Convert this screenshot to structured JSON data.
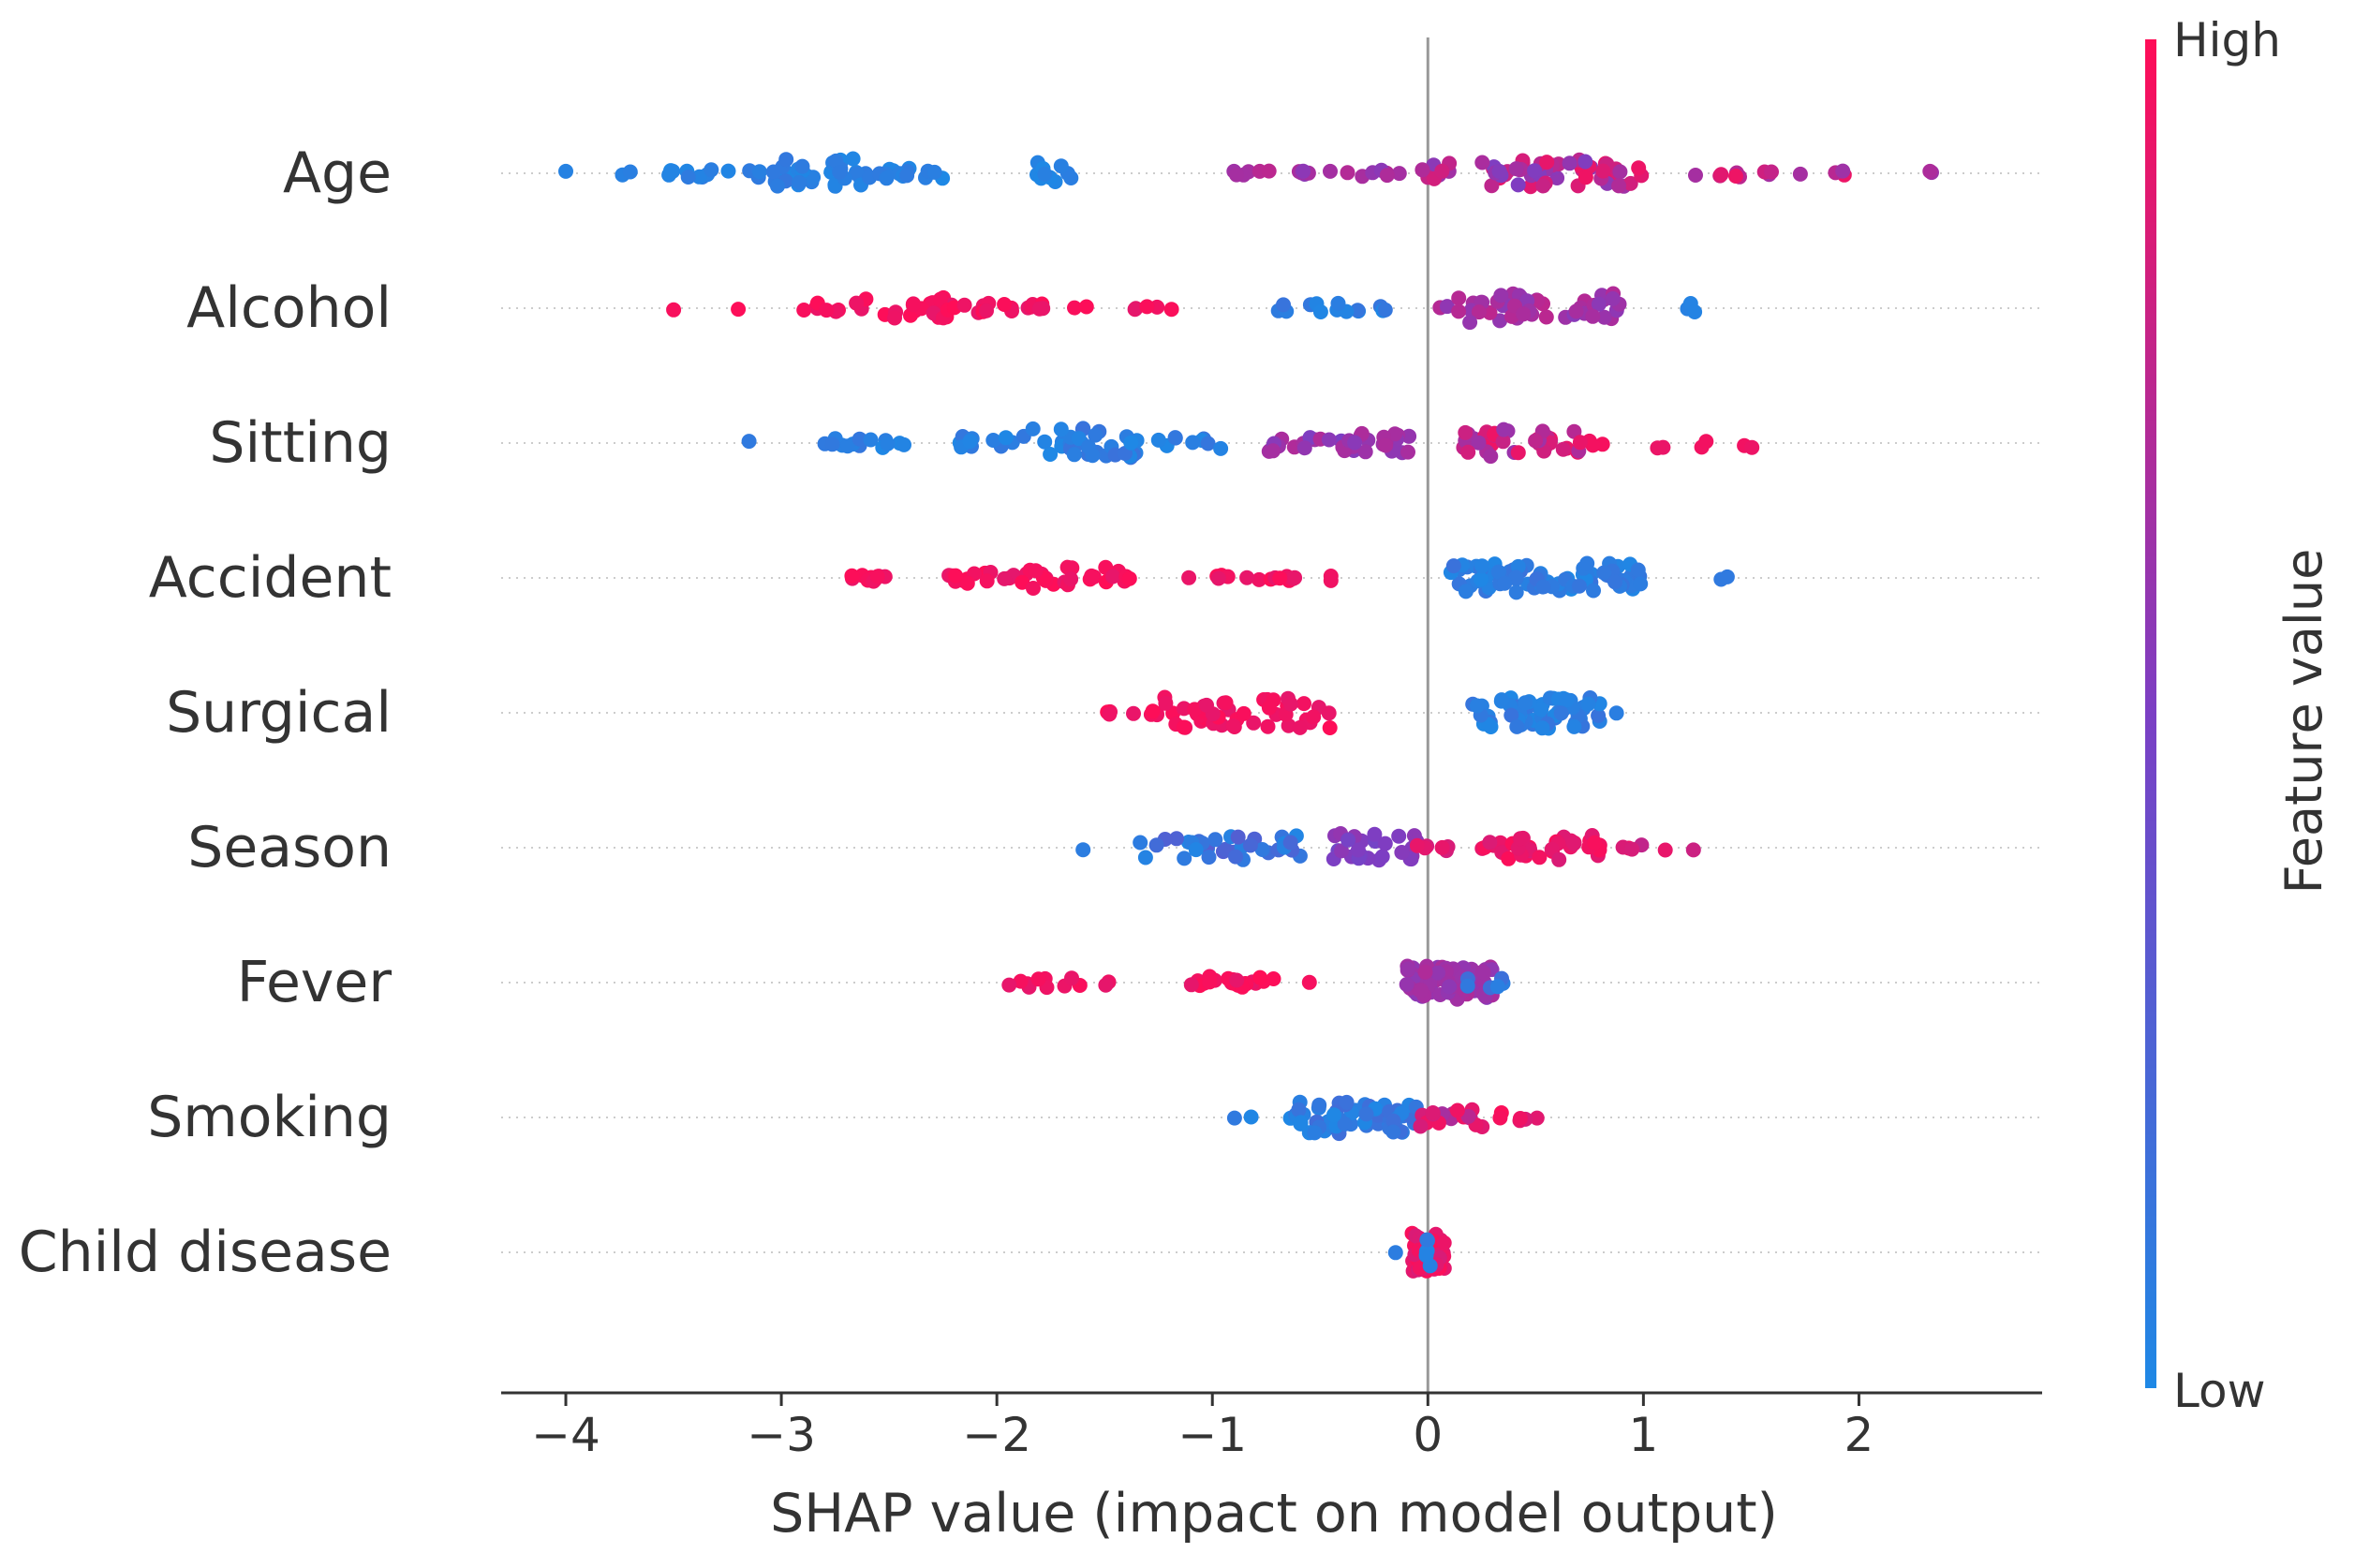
{
  "chart_data": {
    "type": "scatter",
    "subtype": "shap-beeswarm",
    "title": "",
    "xlabel": "SHAP value (impact on model output)",
    "ylabel": "",
    "xlim": [
      -4.3,
      2.85
    ],
    "x_ticks": [
      {
        "value": -4,
        "label": "−4"
      },
      {
        "value": -3,
        "label": "−3"
      },
      {
        "value": -2,
        "label": "−2"
      },
      {
        "value": -1,
        "label": "−1"
      },
      {
        "value": 0,
        "label": "0"
      },
      {
        "value": 1,
        "label": "1"
      },
      {
        "value": 2,
        "label": "2"
      }
    ],
    "colorbar": {
      "title": "Feature value",
      "high_label": "High",
      "low_label": "Low",
      "low_color": "#1E88E5",
      "high_color": "#FF0D57"
    },
    "features": [
      {
        "name": "Age",
        "clusters": [
          {
            "x": [
              -4.0,
              -4.0
            ],
            "n": 1,
            "spread": 0.05,
            "f": [
              0.0,
              0.05
            ]
          },
          {
            "x": [
              -3.75,
              -3.5
            ],
            "n": 5,
            "spread": 0.06,
            "f": [
              0.0,
              0.08
            ]
          },
          {
            "x": [
              -3.45,
              -3.1
            ],
            "n": 10,
            "spread": 0.09,
            "f": [
              0.0,
              0.1
            ]
          },
          {
            "x": [
              -3.05,
              -2.6
            ],
            "n": 38,
            "spread": 0.3,
            "f": [
              0.0,
              0.12
            ]
          },
          {
            "x": [
              -2.6,
              -2.25
            ],
            "n": 16,
            "spread": 0.12,
            "f": [
              0.0,
              0.1
            ]
          },
          {
            "x": [
              -1.85,
              -1.65
            ],
            "n": 10,
            "spread": 0.22,
            "f": [
              0.0,
              0.08
            ]
          },
          {
            "x": [
              -0.95,
              -0.7
            ],
            "n": 6,
            "spread": 0.05,
            "f": [
              0.6,
              0.75
            ]
          },
          {
            "x": [
              -0.6,
              -0.05
            ],
            "n": 13,
            "spread": 0.07,
            "f": [
              0.55,
              0.75
            ]
          },
          {
            "x": [
              -0.03,
              0.1
            ],
            "n": 8,
            "spread": 0.22,
            "f": [
              0.55,
              0.85
            ]
          },
          {
            "x": [
              0.25,
              1.0
            ],
            "n": 55,
            "spread": 0.28,
            "f": [
              0.5,
              0.95
            ]
          },
          {
            "x": [
              1.2,
              1.95
            ],
            "n": 13,
            "spread": 0.08,
            "f": [
              0.6,
              0.95
            ]
          },
          {
            "x": [
              2.3,
              2.45
            ],
            "n": 2,
            "spread": 0.04,
            "f": [
              0.6,
              0.72
            ]
          }
        ]
      },
      {
        "name": "Alcohol",
        "clusters": [
          {
            "x": [
              -3.5,
              -3.5
            ],
            "n": 1,
            "spread": 0.04,
            "f": [
              0.92,
              1.0
            ]
          },
          {
            "x": [
              -3.2,
              -3.2
            ],
            "n": 1,
            "spread": 0.04,
            "f": [
              0.92,
              1.0
            ]
          },
          {
            "x": [
              -2.9,
              -2.2
            ],
            "n": 32,
            "spread": 0.22,
            "f": [
              0.9,
              1.0
            ]
          },
          {
            "x": [
              -2.2,
              -1.5
            ],
            "n": 20,
            "spread": 0.1,
            "f": [
              0.9,
              1.0
            ]
          },
          {
            "x": [
              -1.4,
              -1.1
            ],
            "n": 5,
            "spread": 0.05,
            "f": [
              0.9,
              1.0
            ]
          },
          {
            "x": [
              -0.7,
              -0.15
            ],
            "n": 14,
            "spread": 0.1,
            "f": [
              0.0,
              0.15
            ]
          },
          {
            "x": [
              0.05,
              0.9
            ],
            "n": 50,
            "spread": 0.3,
            "f": [
              0.55,
              0.75
            ]
          },
          {
            "x": [
              1.2,
              1.25
            ],
            "n": 3,
            "spread": 0.1,
            "f": [
              0.0,
              0.1
            ]
          }
        ]
      },
      {
        "name": "Sitting",
        "clusters": [
          {
            "x": [
              -3.15,
              -3.15
            ],
            "n": 1,
            "spread": 0.05,
            "f": [
              0.0,
              0.1
            ]
          },
          {
            "x": [
              -2.9,
              -2.3
            ],
            "n": 14,
            "spread": 0.1,
            "f": [
              0.0,
              0.12
            ]
          },
          {
            "x": [
              -2.25,
              -1.85
            ],
            "n": 12,
            "spread": 0.15,
            "f": [
              0.0,
              0.12
            ]
          },
          {
            "x": [
              -1.85,
              -1.35
            ],
            "n": 32,
            "spread": 0.3,
            "f": [
              0.0,
              0.15
            ]
          },
          {
            "x": [
              -1.25,
              -0.9
            ],
            "n": 9,
            "spread": 0.12,
            "f": [
              0.0,
              0.15
            ]
          },
          {
            "x": [
              -0.75,
              -0.05
            ],
            "n": 38,
            "spread": 0.22,
            "f": [
              0.5,
              0.7
            ]
          },
          {
            "x": [
              0.15,
              0.7
            ],
            "n": 36,
            "spread": 0.28,
            "f": [
              0.6,
              0.95
            ]
          },
          {
            "x": [
              0.7,
              0.85
            ],
            "n": 4,
            "spread": 0.05,
            "f": [
              0.9,
              1.0
            ]
          },
          {
            "x": [
              1.05,
              1.7
            ],
            "n": 6,
            "spread": 0.12,
            "f": [
              0.92,
              1.0
            ]
          }
        ]
      },
      {
        "name": "Accident",
        "clusters": [
          {
            "x": [
              -2.7,
              -2.5
            ],
            "n": 10,
            "spread": 0.1,
            "f": [
              0.9,
              1.0
            ]
          },
          {
            "x": [
              -2.25,
              -1.85
            ],
            "n": 16,
            "spread": 0.12,
            "f": [
              0.9,
              1.0
            ]
          },
          {
            "x": [
              -1.85,
              -1.4
            ],
            "n": 22,
            "spread": 0.22,
            "f": [
              0.9,
              1.0
            ]
          },
          {
            "x": [
              -1.4,
              -0.6
            ],
            "n": 16,
            "spread": 0.06,
            "f": [
              0.9,
              1.0
            ]
          },
          {
            "x": [
              -0.45,
              -0.45
            ],
            "n": 2,
            "spread": 0.06,
            "f": [
              0.92,
              1.0
            ]
          },
          {
            "x": [
              0.1,
              1.0
            ],
            "n": 80,
            "spread": 0.3,
            "f": [
              0.0,
              0.15
            ]
          },
          {
            "x": [
              1.15,
              1.45
            ],
            "n": 2,
            "spread": 0.05,
            "f": [
              0.0,
              0.1
            ]
          }
        ]
      },
      {
        "name": "Surgical",
        "clusters": [
          {
            "x": [
              -1.5,
              -1.25
            ],
            "n": 8,
            "spread": 0.06,
            "f": [
              0.9,
              1.0
            ]
          },
          {
            "x": [
              -1.25,
              -0.4
            ],
            "n": 48,
            "spread": 0.32,
            "f": [
              0.9,
              1.0
            ]
          },
          {
            "x": [
              0.2,
              0.8
            ],
            "n": 62,
            "spread": 0.32,
            "f": [
              0.0,
              0.15
            ]
          },
          {
            "x": [
              0.85,
              0.9
            ],
            "n": 1,
            "spread": 0.04,
            "f": [
              0.0,
              0.1
            ]
          }
        ]
      },
      {
        "name": "Season",
        "clusters": [
          {
            "x": [
              -1.6,
              -1.6
            ],
            "n": 1,
            "spread": 0.05,
            "f": [
              0.0,
              0.1
            ]
          },
          {
            "x": [
              -1.35,
              -0.55
            ],
            "n": 36,
            "spread": 0.25,
            "f": [
              0.0,
              0.3
            ]
          },
          {
            "x": [
              -0.45,
              -0.05
            ],
            "n": 26,
            "spread": 0.3,
            "f": [
              0.45,
              0.6
            ]
          },
          {
            "x": [
              -0.05,
              0.1
            ],
            "n": 6,
            "spread": 0.08,
            "f": [
              0.8,
              0.95
            ]
          },
          {
            "x": [
              0.2,
              0.8
            ],
            "n": 36,
            "spread": 0.25,
            "f": [
              0.85,
              1.0
            ]
          },
          {
            "x": [
              0.85,
              1.25
            ],
            "n": 6,
            "spread": 0.06,
            "f": [
              0.75,
              1.0
            ]
          }
        ]
      },
      {
        "name": "Fever",
        "clusters": [
          {
            "x": [
              -2.0,
              -1.45
            ],
            "n": 12,
            "spread": 0.1,
            "f": [
              0.9,
              1.0
            ]
          },
          {
            "x": [
              -1.15,
              -0.7
            ],
            "n": 22,
            "spread": 0.14,
            "f": [
              0.9,
              1.0
            ]
          },
          {
            "x": [
              -0.55,
              -0.55
            ],
            "n": 1,
            "spread": 0.04,
            "f": [
              0.92,
              1.0
            ]
          },
          {
            "x": [
              -0.1,
              0.3
            ],
            "n": 62,
            "spread": 0.35,
            "f": [
              0.55,
              0.7
            ]
          },
          {
            "x": [
              0.15,
              0.35
            ],
            "n": 6,
            "spread": 0.12,
            "f": [
              0.05,
              0.2
            ]
          }
        ]
      },
      {
        "name": "Smoking",
        "clusters": [
          {
            "x": [
              -0.95,
              -0.6
            ],
            "n": 6,
            "spread": 0.06,
            "f": [
              0.0,
              0.12
            ]
          },
          {
            "x": [
              -0.6,
              -0.05
            ],
            "n": 56,
            "spread": 0.33,
            "f": [
              0.0,
              0.2
            ]
          },
          {
            "x": [
              -0.05,
              0.3
            ],
            "n": 18,
            "spread": 0.2,
            "f": [
              0.65,
              0.95
            ]
          },
          {
            "x": [
              0.3,
              0.55
            ],
            "n": 6,
            "spread": 0.1,
            "f": [
              0.85,
              1.0
            ]
          }
        ]
      },
      {
        "name": "Child disease",
        "clusters": [
          {
            "x": [
              -0.15,
              -0.15
            ],
            "n": 1,
            "spread": 0.04,
            "f": [
              0.0,
              0.1
            ]
          },
          {
            "x": [
              -0.08,
              0.08
            ],
            "n": 48,
            "spread": 0.4,
            "f": [
              0.85,
              1.0
            ]
          },
          {
            "x": [
              -0.02,
              0.02
            ],
            "n": 6,
            "spread": 0.3,
            "f": [
              0.0,
              0.12
            ]
          }
        ]
      }
    ]
  }
}
